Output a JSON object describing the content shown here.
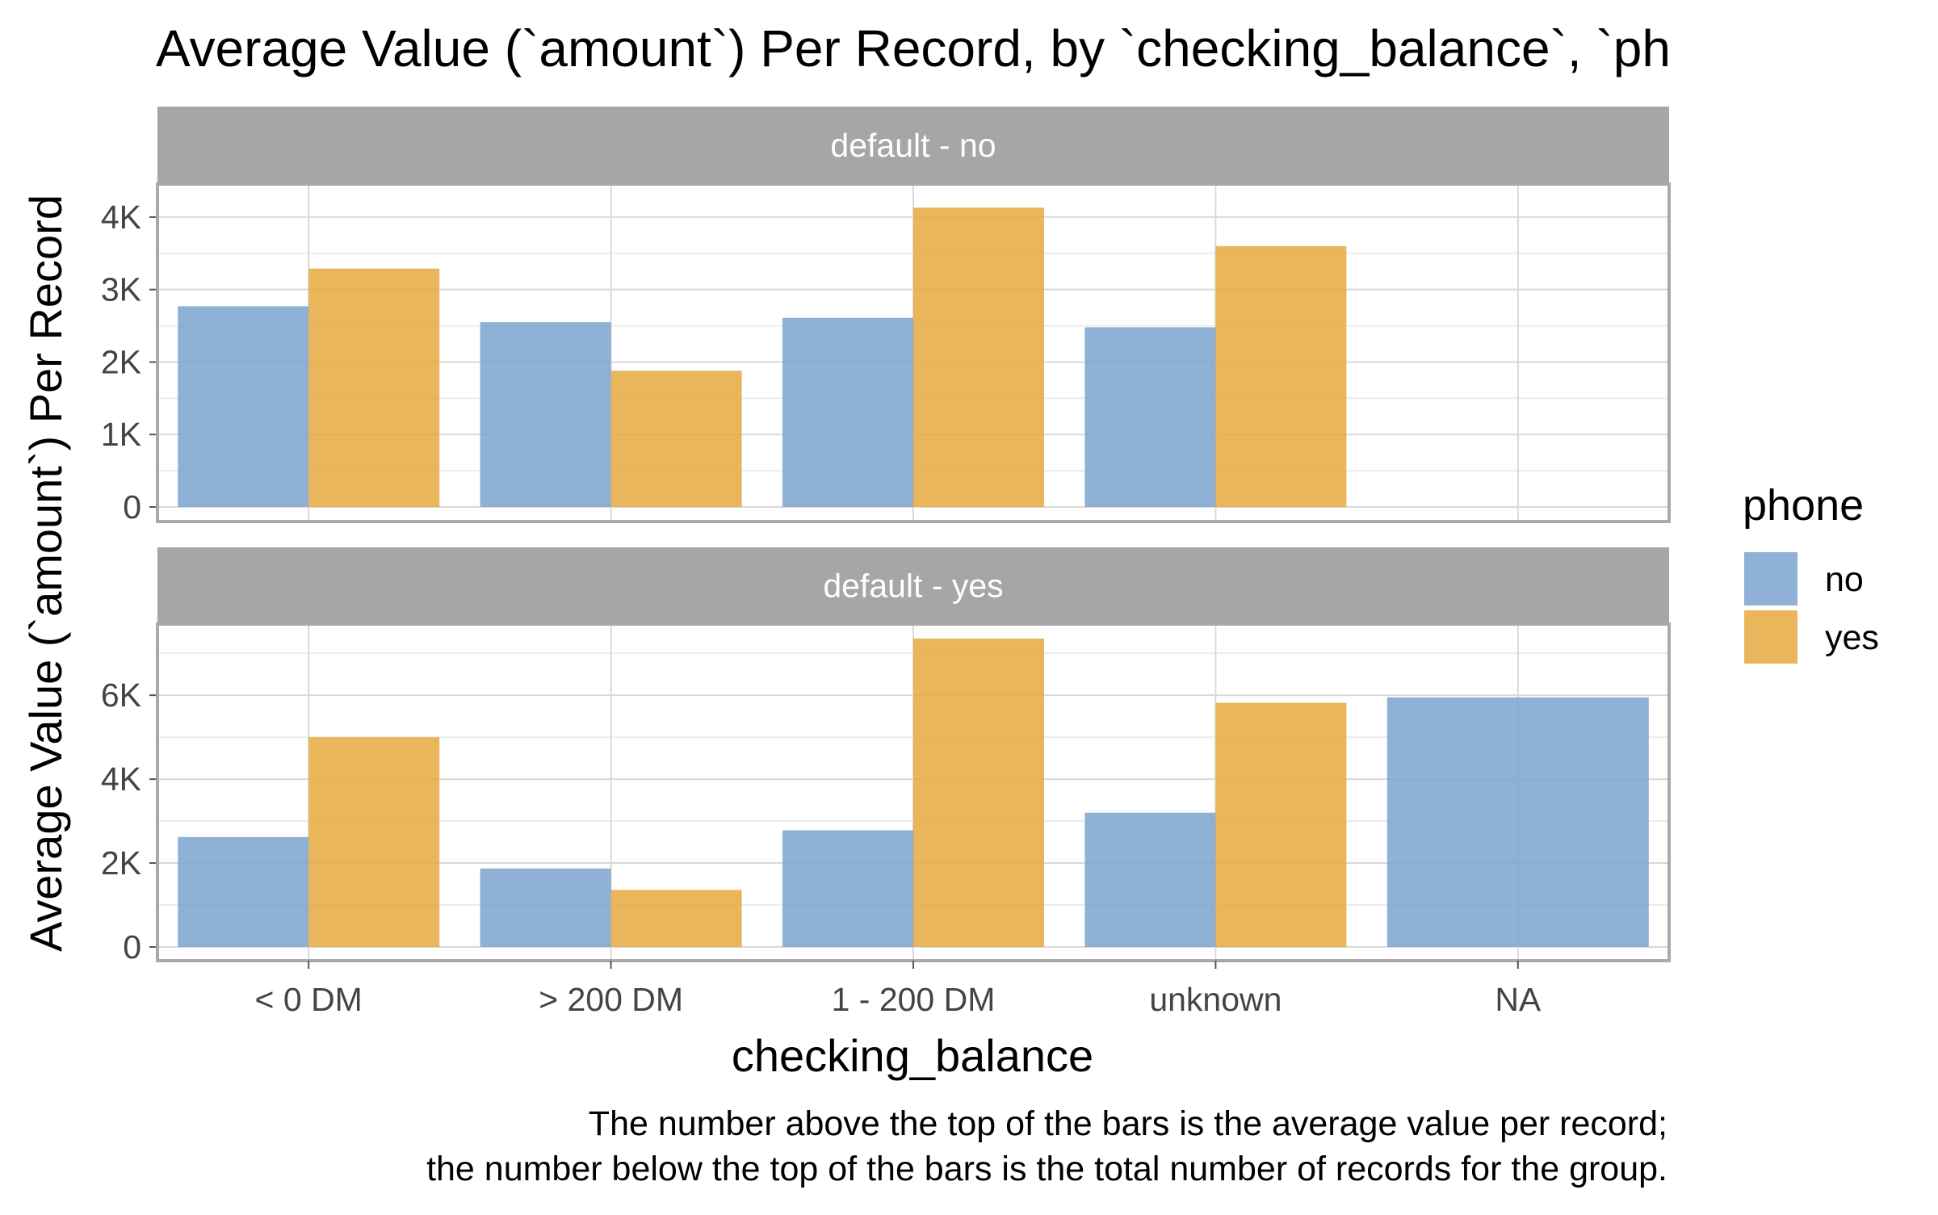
{
  "colors": {
    "no": "#7ba3cf",
    "yes": "#e6a93e",
    "strip_bg": "#a6a6a6",
    "panel_border": "#a9a9a9",
    "grid_major": "#d9d9d9",
    "grid_minor": "#ececec"
  },
  "chart_data": {
    "type": "bar",
    "title": "Average Value (`amount`) Per Record, by `checking_balance`, `ph",
    "xlabel": "checking_balance",
    "ylabel": "Average Value (`amount`) Per Record",
    "categories": [
      "< 0 DM",
      "> 200 DM",
      "1 - 200 DM",
      "unknown",
      "NA"
    ],
    "legend": {
      "title": "phone",
      "position": "right",
      "entries": [
        {
          "key": "no",
          "label": "no"
        },
        {
          "key": "yes",
          "label": "yes"
        }
      ]
    },
    "grid": true,
    "caption_lines": [
      "The number above the top of the bars is the average value per record;",
      "the number below the top of the bars is the total number of records for the group."
    ],
    "panels": [
      {
        "label": "default - no",
        "ylim": [
          0,
          4400
        ],
        "yticks": [
          0,
          1000,
          2000,
          3000,
          4000
        ],
        "ytick_labels": [
          "0",
          "1K",
          "2K",
          "3K",
          "4K"
        ],
        "series": [
          {
            "name": "no",
            "values": [
              2770,
              2550,
              2610,
              2480,
              null
            ]
          },
          {
            "name": "yes",
            "values": [
              3290,
              1880,
              4130,
              3600,
              null
            ]
          }
        ]
      },
      {
        "label": "default - yes",
        "ylim": [
          0,
          7600
        ],
        "yticks": [
          0,
          2000,
          4000,
          6000
        ],
        "ytick_labels": [
          "0",
          "2K",
          "4K",
          "6K"
        ],
        "series": [
          {
            "name": "no",
            "values": [
              2620,
              1870,
              2780,
              3200,
              5950
            ]
          },
          {
            "name": "yes",
            "values": [
              5000,
              1360,
              7350,
              5820,
              null
            ]
          }
        ]
      }
    ]
  }
}
